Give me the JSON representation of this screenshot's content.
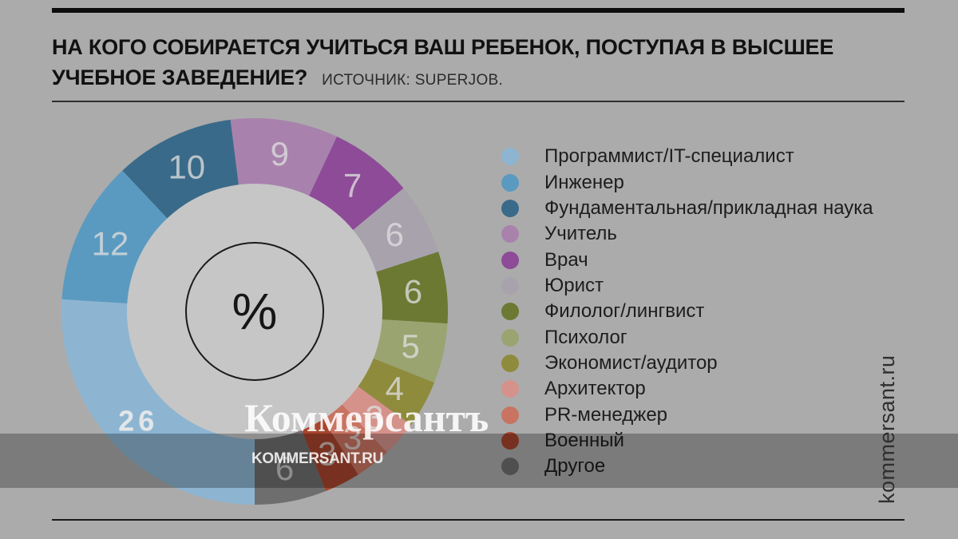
{
  "page": {
    "background": "#ababab"
  },
  "header": {
    "title": "НА КОГО СОБИРАЕТСЯ УЧИТЬСЯ ВАШ РЕБЕНОК, ПОСТУПАЯ В ВЫСШЕЕ УЧЕБНОЕ ЗАВЕДЕНИЕ?",
    "source": "ИСТОЧНИК: SUPERJOB."
  },
  "chart_data": {
    "type": "pie",
    "subtype": "donut",
    "title": "НА КОГО СОБИРАЕТСЯ УЧИТЬСЯ ВАШ РЕБЕНОК, ПОСТУПАЯ В ВЫСШЕЕ УЧЕБНОЕ ЗАВЕДЕНИЕ?",
    "source": "ИСТОЧНИК: SUPERJOB.",
    "unit": "percent",
    "center_label": "%",
    "start_angle_deg": 180,
    "direction": "clockwise",
    "legend_position": "right",
    "donut_hole_color": "#c6c6c6",
    "segments": [
      {
        "label": "Программист/IT-специалист",
        "value": 26,
        "color": "#8db5d1"
      },
      {
        "label": "Инженер",
        "value": 12,
        "color": "#5a9ac0"
      },
      {
        "label": "Фундаментальная/прикладная наука",
        "value": 10,
        "color": "#3a6a89"
      },
      {
        "label": "Учитель",
        "value": 9,
        "color": "#a882ad"
      },
      {
        "label": "Врач",
        "value": 7,
        "color": "#8d4b98"
      },
      {
        "label": "Юрист",
        "value": 6,
        "color": "#a8a2ad"
      },
      {
        "label": "Филолог/лингвист",
        "value": 6,
        "color": "#6c7933"
      },
      {
        "label": "Психолог",
        "value": 5,
        "color": "#9aa470"
      },
      {
        "label": "Экономист/аудитор",
        "value": 4,
        "color": "#8e8b3d"
      },
      {
        "label": "Архитектор",
        "value": 3,
        "color": "#d5928b"
      },
      {
        "label": "PR-менеджер",
        "value": 3,
        "color": "#c97362"
      },
      {
        "label": "Военный",
        "value": 3,
        "color": "#a7452d"
      },
      {
        "label": "Другое",
        "value": 6,
        "color": "#6e6e6e"
      }
    ]
  },
  "watermark": {
    "brand": "Коммерсантъ",
    "brand_url": "KOMMERSANT.RU",
    "site_vertical": "kommersant.ru"
  }
}
